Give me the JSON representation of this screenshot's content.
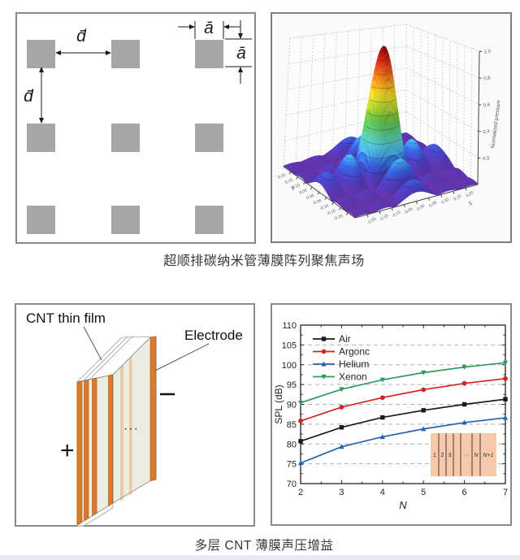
{
  "figure_top": {
    "caption": "超顺排碳纳米管薄膜阵列聚焦声场",
    "array_diagram": {
      "rows": 3,
      "cols": 3,
      "square_color": "#a6a6a6",
      "gap_label": "d̄",
      "size_label": "ā"
    }
  },
  "figure_bottom": {
    "caption": "多层 CNT 薄膜声压增益",
    "stack_diagram": {
      "film_label": "CNT thin film",
      "electrode_label": "Electrode",
      "plus_label": "+",
      "minus_label": "−",
      "dots_label": "···",
      "electrode_color": "#e0782a",
      "film_color": "#ecede1"
    }
  },
  "chart_data": [
    {
      "type": "surface",
      "xlabel": "X",
      "ylabel": "Y",
      "zlabel": "Normalized pressure",
      "x_range": [
        -0.25,
        0.25
      ],
      "y_range": [
        -0.25,
        0.25
      ],
      "z_range": [
        0,
        1
      ],
      "x_ticks": [
        -0.2,
        -0.15,
        -0.1,
        -0.05,
        0.0,
        0.05,
        0.1,
        0.15,
        0.2
      ],
      "y_ticks": [
        0.2,
        0.15,
        0.1,
        0.05,
        0.0,
        -0.05,
        -0.1,
        -0.15,
        -0.2
      ],
      "z_ticks": [
        0.2,
        0.4,
        0.6,
        0.8,
        1.0
      ],
      "description": "Focused acoustic field: central normalized-pressure peak of 1.0 at (0,0) with first side lobes ~0.22 at ±0.13 along X and Y, sinc-profile ripples elsewhere",
      "peak": {
        "x": 0,
        "y": 0,
        "z": 1.0
      },
      "side_lobe_height": 0.22
    },
    {
      "type": "line",
      "x": [
        2,
        3,
        4,
        5,
        6,
        7
      ],
      "series": [
        {
          "name": "Air",
          "color": "#1a1a1a",
          "marker": "square",
          "values": [
            80.7,
            84.2,
            86.7,
            88.5,
            90.0,
            91.3
          ]
        },
        {
          "name": "Argonc",
          "color": "#d2251d",
          "marker": "circle",
          "values": [
            85.8,
            89.3,
            91.7,
            93.7,
            95.3,
            96.5
          ]
        },
        {
          "name": "Helium",
          "color": "#2563ae",
          "marker": "triangle-up",
          "values": [
            75.2,
            79.3,
            81.8,
            83.8,
            85.4,
            86.6
          ]
        },
        {
          "name": "Xenon",
          "color": "#2d9b5c",
          "marker": "triangle-down",
          "values": [
            90.4,
            93.8,
            96.2,
            98.0,
            99.4,
            100.5
          ]
        }
      ],
      "xlabel": "N",
      "ylabel": "SPL (dB)",
      "xlim": [
        2,
        7
      ],
      "ylim": [
        70,
        110
      ],
      "x_ticks": [
        2,
        3,
        4,
        5,
        6,
        7
      ],
      "y_ticks": [
        70,
        75,
        80,
        85,
        90,
        95,
        100,
        105,
        110
      ],
      "grid": "horizontal dashed at 75..105",
      "legend_position": "top-left",
      "inset": {
        "fill": "#f6c9ac",
        "line_color": "#4a3a32",
        "labels": [
          "1",
          "2",
          "3",
          "···",
          "N",
          "N+1"
        ]
      }
    }
  ]
}
